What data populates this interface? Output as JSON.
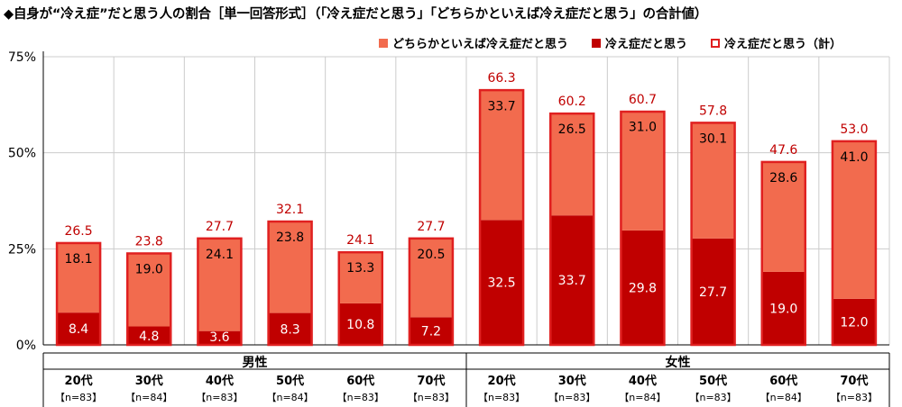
{
  "title": "◆自身が“冷え症”だと思う人の割合［単一回答形式］（「冷え症だと思う」「どちらかといえば冷え症だと思う」の合計値）",
  "colors": {
    "light": "#F26B4E",
    "dark": "#C00000",
    "outline": "#E02020",
    "total_label": "#C00000",
    "grid": "#CCCCCC"
  },
  "legend": [
    {
      "label": "どちらかといえば冷え症だと思う",
      "kind": "light"
    },
    {
      "label": "冷え症だと思う",
      "kind": "dark"
    },
    {
      "label": "冷え症だと思う（計）",
      "kind": "outline"
    }
  ],
  "chart_data": {
    "type": "bar",
    "stacked": true,
    "ylim": [
      0,
      75
    ],
    "yticks": [
      "0%",
      "25%",
      "50%",
      "75%"
    ],
    "grid": true,
    "legend_position": "top-right",
    "groups": [
      {
        "name": "男性",
        "start": 0,
        "count": 6
      },
      {
        "name": "女性",
        "start": 6,
        "count": 6
      }
    ],
    "categories": [
      "20代",
      "30代",
      "40代",
      "50代",
      "60代",
      "70代",
      "20代",
      "30代",
      "40代",
      "50代",
      "60代",
      "70代"
    ],
    "sample_sizes": [
      "【n=83】",
      "【n=84】",
      "【n=83】",
      "【n=84】",
      "【n=83】",
      "【n=83】",
      "【n=83】",
      "【n=83】",
      "【n=84】",
      "【n=83】",
      "【n=84】",
      "【n=83】"
    ],
    "series": [
      {
        "name": "冷え症だと思う",
        "values": [
          8.4,
          4.8,
          3.6,
          8.3,
          10.8,
          7.2,
          32.5,
          33.7,
          29.8,
          27.7,
          19.0,
          12.0
        ]
      },
      {
        "name": "どちらかといえば冷え症だと思う",
        "values": [
          18.1,
          19.0,
          24.1,
          23.8,
          13.3,
          20.5,
          33.7,
          26.5,
          31.0,
          30.1,
          28.6,
          41.0
        ]
      }
    ],
    "totals": {
      "name": "冷え症だと思う（計）",
      "values": [
        26.5,
        23.8,
        27.7,
        32.1,
        24.1,
        27.7,
        66.3,
        60.2,
        60.7,
        57.8,
        47.6,
        53.0
      ]
    }
  }
}
